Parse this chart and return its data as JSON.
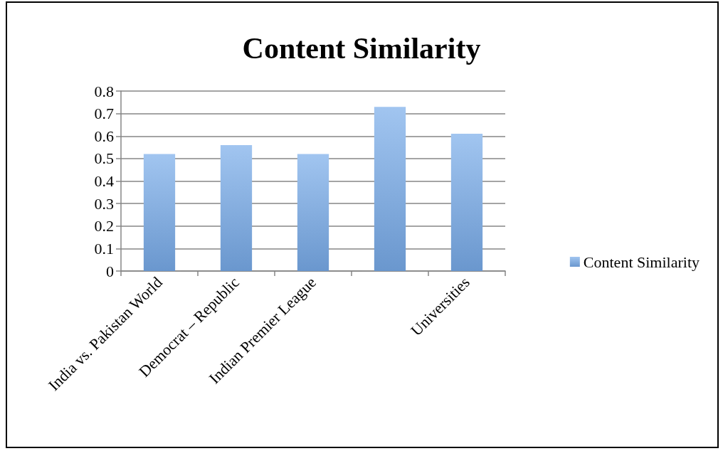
{
  "chart_data": {
    "type": "bar",
    "title": "Content Similarity",
    "categories": [
      "India vs. Pakistan World",
      "Democrat – Republic",
      "Indian Premier League",
      null,
      "Universities"
    ],
    "series": [
      {
        "name": "Content Similarity",
        "color": "#78acea",
        "values": [
          0.52,
          0.56,
          0.52,
          0.73,
          0.61
        ]
      }
    ],
    "ylim": [
      0,
      0.8
    ],
    "yticks": [
      0,
      0.1,
      0.2,
      0.3,
      0.4,
      0.5,
      0.6,
      0.7,
      0.8
    ],
    "grid": "y",
    "legend": "right"
  }
}
